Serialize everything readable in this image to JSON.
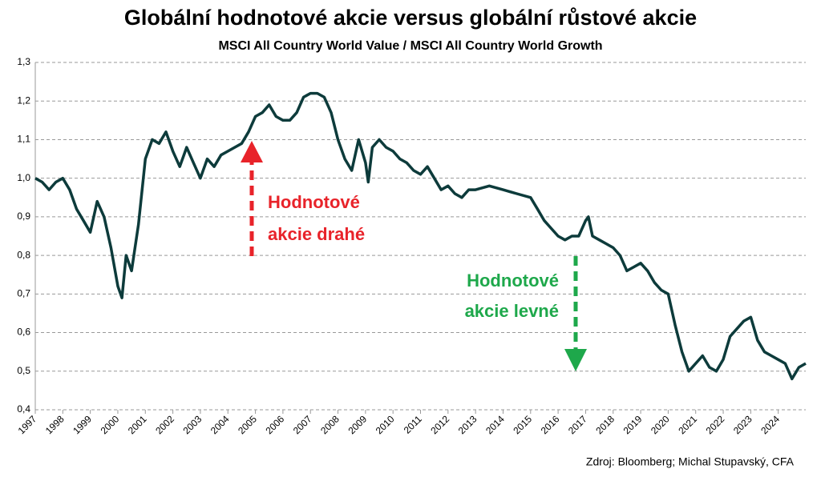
{
  "chart_data": {
    "type": "line",
    "title": "Globální hodnotové akcie versus globální růstové akcie",
    "subtitle": "MSCI All Country World Value / MSCI All Country World Growth",
    "source": "Zdroj: Bloomberg; Michal Stupavský, CFA",
    "annotations": [
      {
        "lines": [
          "Hodnotové",
          "akcie drahé"
        ],
        "color": "#e8232a"
      },
      {
        "lines": [
          "Hodnotové",
          "akcie levné"
        ],
        "color": "#1ea84b"
      }
    ],
    "x": [
      1997.0,
      1997.25,
      1997.5,
      1997.75,
      1998.0,
      1998.25,
      1998.5,
      1998.75,
      1999.0,
      1999.25,
      1999.5,
      1999.75,
      2000.0,
      2000.15,
      2000.3,
      2000.5,
      2000.75,
      2001.0,
      2001.25,
      2001.5,
      2001.75,
      2002.0,
      2002.25,
      2002.5,
      2002.75,
      2003.0,
      2003.25,
      2003.5,
      2003.75,
      2004.0,
      2004.25,
      2004.5,
      2004.75,
      2005.0,
      2005.25,
      2005.5,
      2005.75,
      2006.0,
      2006.25,
      2006.5,
      2006.75,
      2007.0,
      2007.25,
      2007.5,
      2007.75,
      2008.0,
      2008.25,
      2008.5,
      2008.75,
      2009.0,
      2009.1,
      2009.25,
      2009.5,
      2009.75,
      2010.0,
      2010.25,
      2010.5,
      2010.75,
      2011.0,
      2011.25,
      2011.5,
      2011.75,
      2012.0,
      2012.25,
      2012.5,
      2012.75,
      2013.0,
      2013.5,
      2014.0,
      2014.5,
      2015.0,
      2015.25,
      2015.5,
      2015.75,
      2016.0,
      2016.25,
      2016.5,
      2016.75,
      2017.0,
      2017.1,
      2017.25,
      2017.5,
      2017.75,
      2018.0,
      2018.25,
      2018.5,
      2018.75,
      2019.0,
      2019.25,
      2019.5,
      2019.75,
      2020.0,
      2020.25,
      2020.5,
      2020.75,
      2021.0,
      2021.25,
      2021.5,
      2021.75,
      2022.0,
      2022.25,
      2022.5,
      2022.75,
      2023.0,
      2023.25,
      2023.5,
      2023.75,
      2024.0,
      2024.25,
      2024.5,
      2024.75,
      2025.0
    ],
    "series": [
      {
        "name": "MSCI ACWI Value / Growth",
        "color": "#0d3b3b",
        "values": [
          1.0,
          0.99,
          0.97,
          0.99,
          1.0,
          0.97,
          0.92,
          0.89,
          0.86,
          0.94,
          0.9,
          0.82,
          0.72,
          0.69,
          0.8,
          0.76,
          0.88,
          1.05,
          1.1,
          1.09,
          1.12,
          1.07,
          1.03,
          1.08,
          1.04,
          1.0,
          1.05,
          1.03,
          1.06,
          1.07,
          1.08,
          1.09,
          1.12,
          1.16,
          1.17,
          1.19,
          1.16,
          1.15,
          1.15,
          1.17,
          1.21,
          1.22,
          1.22,
          1.21,
          1.17,
          1.1,
          1.05,
          1.02,
          1.1,
          1.04,
          0.99,
          1.08,
          1.1,
          1.08,
          1.07,
          1.05,
          1.04,
          1.02,
          1.01,
          1.03,
          1.0,
          0.97,
          0.98,
          0.96,
          0.95,
          0.97,
          0.97,
          0.98,
          0.97,
          0.96,
          0.95,
          0.92,
          0.89,
          0.87,
          0.85,
          0.84,
          0.85,
          0.85,
          0.89,
          0.9,
          0.85,
          0.84,
          0.83,
          0.82,
          0.8,
          0.76,
          0.77,
          0.78,
          0.76,
          0.73,
          0.71,
          0.7,
          0.62,
          0.55,
          0.5,
          0.52,
          0.54,
          0.51,
          0.5,
          0.53,
          0.59,
          0.61,
          0.63,
          0.64,
          0.58,
          0.55,
          0.54,
          0.53,
          0.52,
          0.48,
          0.51,
          0.52
        ]
      }
    ],
    "xlim": [
      1997,
      2025
    ],
    "xticks": [
      1997,
      1998,
      1999,
      2000,
      2001,
      2002,
      2003,
      2004,
      2005,
      2006,
      2007,
      2008,
      2009,
      2010,
      2011,
      2012,
      2013,
      2014,
      2015,
      2016,
      2017,
      2018,
      2019,
      2020,
      2021,
      2022,
      2023,
      2024
    ],
    "ylim": [
      0.4,
      1.3
    ],
    "yticks": [
      {
        "value": 0.4,
        "label": "0,4"
      },
      {
        "value": 0.5,
        "label": "0,5"
      },
      {
        "value": 0.6,
        "label": "0,6"
      },
      {
        "value": 0.7,
        "label": "0,7"
      },
      {
        "value": 0.8,
        "label": "0,8"
      },
      {
        "value": 0.9,
        "label": "0,9"
      },
      {
        "value": 1.0,
        "label": "1,0"
      },
      {
        "value": 1.1,
        "label": "1,1"
      },
      {
        "value": 1.2,
        "label": "1,2"
      },
      {
        "value": 1.3,
        "label": "1,3"
      }
    ],
    "grid": true
  }
}
